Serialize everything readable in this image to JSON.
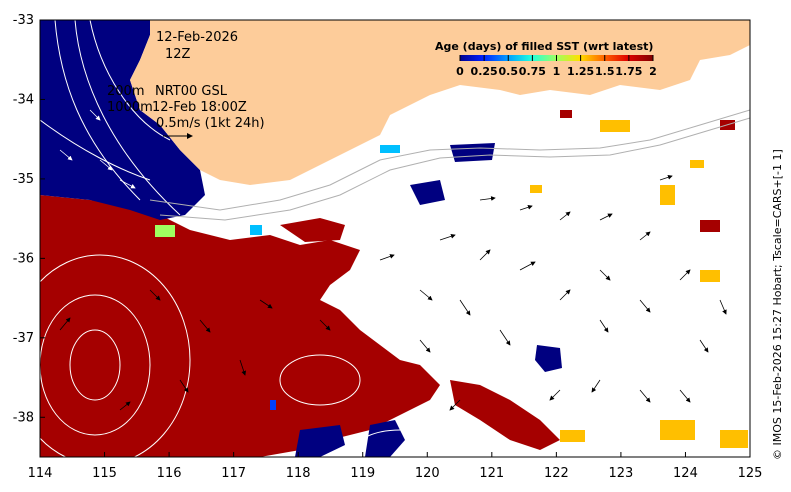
{
  "map": {
    "date_line": "12-Feb-2026",
    "hour_line": "12Z",
    "isobath_200": "200m",
    "isobath_1000": "1000m",
    "product_line": "NRT00 GSL",
    "time_line": "12-Feb 18:00Z",
    "vector_scale_label": "0.5m/s (1kt 24h)",
    "credit": "© IMOS 15-Feb-2026 15:27 Hobart; Tscale=CARS+[-1 1]",
    "x_ticks": [
      "114",
      "115",
      "116",
      "117",
      "118",
      "119",
      "120",
      "121",
      "122",
      "123",
      "124",
      "125"
    ],
    "y_ticks": [
      "-33",
      "-34",
      "-35",
      "-36",
      "-37",
      "-38"
    ],
    "lon_range": [
      114,
      125
    ],
    "lat_range": [
      -38.5,
      -33
    ],
    "colors": {
      "land": "#fdcc9a",
      "ocean_fill": "#ffffff",
      "age_0": "#000080",
      "age_2": "#a50000"
    }
  },
  "legend": {
    "title": "Age (days) of filled SST (wrt latest)",
    "ticks": [
      "0",
      "0.25",
      "0.5",
      "0.75",
      "1",
      "1.25",
      "1.5",
      "1.75",
      "2"
    ],
    "colors": [
      "#00008f",
      "#0040ff",
      "#00bfff",
      "#40ffbf",
      "#bfff40",
      "#ffbf00",
      "#ff4000",
      "#bf0000",
      "#800000"
    ]
  }
}
